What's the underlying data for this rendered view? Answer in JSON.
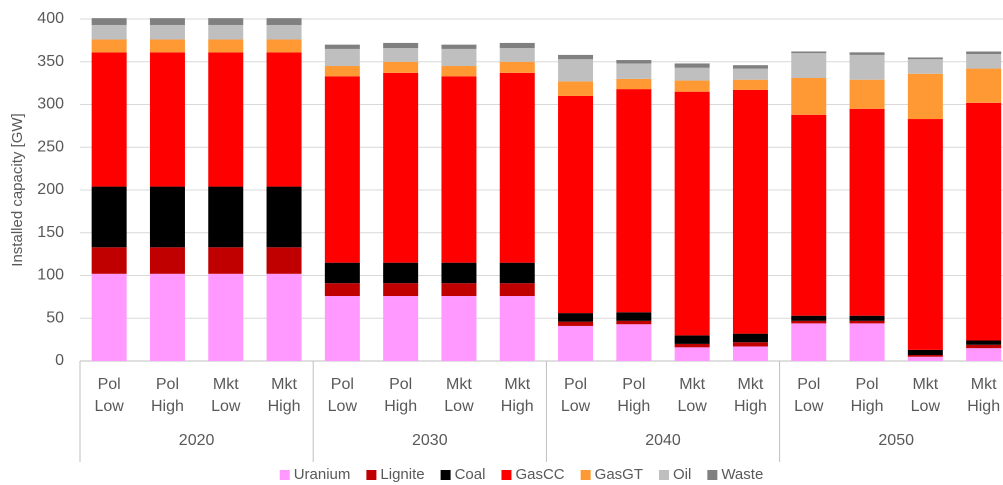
{
  "chart_data": {
    "type": "stacked_bar",
    "y_label": "Installed capacity [GW]",
    "categories": [
      "Pol Low",
      "Pol High",
      "Mkt Low",
      "Mkt High",
      "Pol Low",
      "Pol High",
      "Mkt Low",
      "Mkt High",
      "Pol Low",
      "Pol High",
      "Mkt Low",
      "Mkt High",
      "Pol Low",
      "Pol High",
      "Mkt Low",
      "Mkt High"
    ],
    "groups": [
      "2020",
      "2030",
      "2040",
      "2050"
    ],
    "series": [
      {
        "name": "Uranium",
        "color": "#ff99ff",
        "values": [
          102,
          102,
          102,
          102,
          76,
          76,
          76,
          76,
          41,
          43,
          16,
          17,
          44,
          44,
          5,
          15
        ]
      },
      {
        "name": "Lignite",
        "color": "#c00000",
        "values": [
          31,
          31,
          31,
          31,
          15,
          15,
          15,
          15,
          5,
          4,
          4,
          5,
          3,
          3,
          2,
          4
        ]
      },
      {
        "name": "Coal",
        "color": "#000000",
        "values": [
          71,
          71,
          71,
          71,
          24,
          24,
          24,
          24,
          10,
          10,
          10,
          10,
          6,
          6,
          6,
          5
        ]
      },
      {
        "name": "GasCC",
        "color": "#ff0000",
        "values": [
          157,
          157,
          157,
          157,
          218,
          222,
          218,
          222,
          254,
          261,
          285,
          285,
          235,
          242,
          270,
          278
        ]
      },
      {
        "name": "GasGT",
        "color": "#ff9933",
        "values": [
          15,
          15,
          15,
          15,
          12,
          13,
          12,
          13,
          17,
          12,
          13,
          12,
          43,
          34,
          53,
          40
        ]
      },
      {
        "name": "Oil",
        "color": "#bfbfbf",
        "values": [
          17,
          17,
          17,
          17,
          20,
          16,
          20,
          16,
          26,
          18,
          15,
          13,
          29,
          29,
          17,
          17
        ]
      },
      {
        "name": "Waste",
        "color": "#808080",
        "values": [
          8,
          8,
          8,
          8,
          5,
          6,
          5,
          6,
          5,
          4,
          5,
          4,
          2,
          3,
          2,
          3
        ]
      }
    ],
    "ylim": [
      0,
      400
    ],
    "yticks": [
      0,
      50,
      100,
      150,
      200,
      250,
      300,
      350,
      400
    ],
    "grid": true,
    "legend": "bottom"
  }
}
